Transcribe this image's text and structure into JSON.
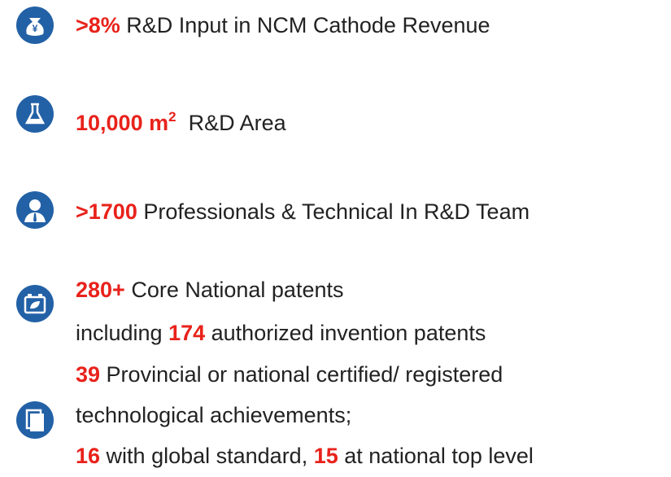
{
  "items": [
    {
      "lines": [
        [
          {
            "em": ">8%"
          },
          {
            "text": " R&D Input in NCM Cathode Revenue"
          }
        ]
      ]
    },
    {
      "lines": [
        [
          {
            "em": "10,000 m"
          },
          {
            "sup": "2"
          },
          {
            "text": "  R&D Area"
          }
        ]
      ]
    },
    {
      "lines": [
        [
          {
            "em": ">1700"
          },
          {
            "text": " Professionals & Technical In R&D Team"
          }
        ]
      ]
    },
    {
      "lines": [
        [
          {
            "em": "280+"
          },
          {
            "text": " Core National patents"
          }
        ],
        [
          {
            "text": "including "
          },
          {
            "em": "174"
          },
          {
            "text": " authorized invention patents"
          }
        ]
      ]
    },
    {
      "lines": [
        [
          {
            "em": "39"
          },
          {
            "text": " Provincial or national certified/ registered"
          }
        ],
        [
          {
            "text": "technological achievements;"
          }
        ],
        [
          {
            "em": "16"
          },
          {
            "text": " with global standard, "
          },
          {
            "em": "15"
          },
          {
            "text": " at national top level"
          }
        ]
      ]
    }
  ]
}
